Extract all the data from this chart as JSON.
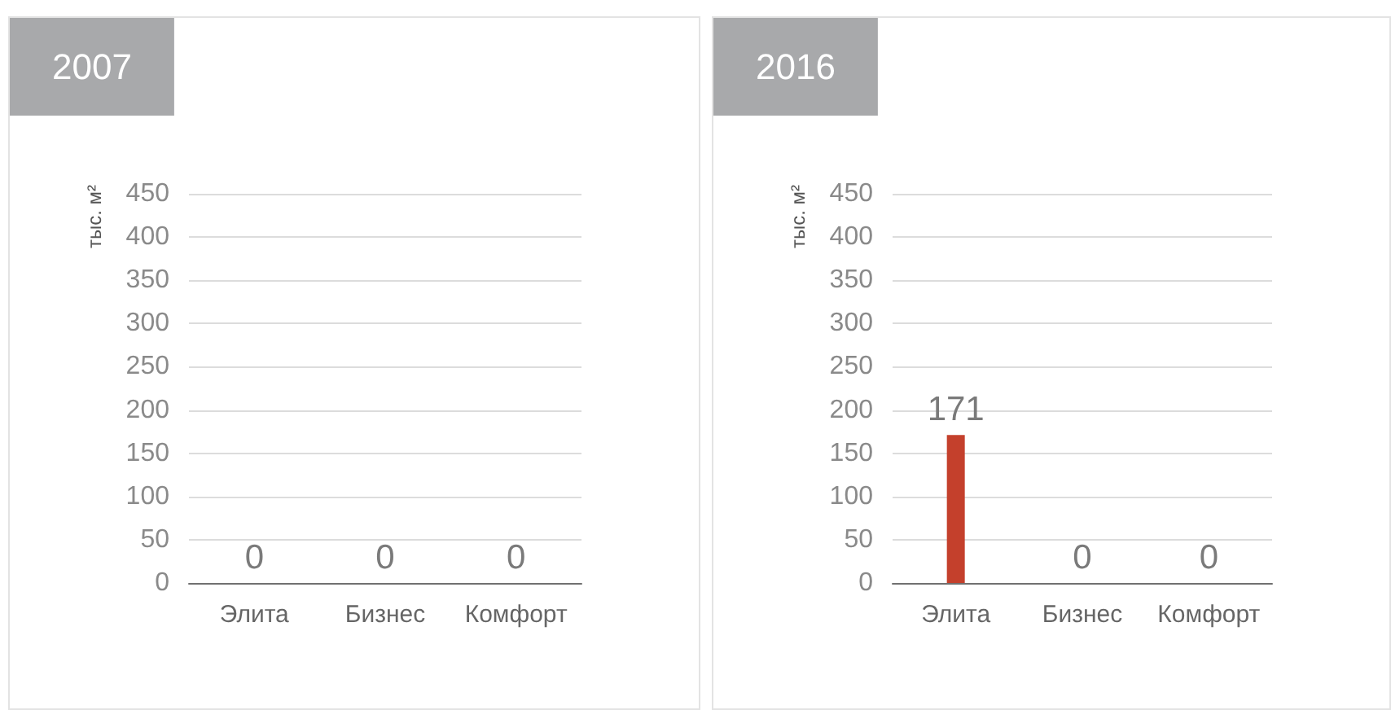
{
  "chart_data": [
    {
      "type": "bar",
      "title": "2007",
      "ylabel": "тыс. м²",
      "categories": [
        "Элита",
        "Бизнес",
        "Комфорт"
      ],
      "values": [
        0,
        0,
        0
      ],
      "ylim": [
        0,
        450
      ],
      "yticks": [
        0,
        50,
        100,
        150,
        200,
        250,
        300,
        350,
        400,
        450
      ],
      "grid": "y",
      "data_labels": true
    },
    {
      "type": "bar",
      "title": "2016",
      "ylabel": "тыс. м²",
      "categories": [
        "Элита",
        "Бизнес",
        "Комфорт"
      ],
      "values": [
        171,
        0,
        0
      ],
      "color": "#c4402c",
      "ylim": [
        0,
        450
      ],
      "yticks": [
        0,
        50,
        100,
        150,
        200,
        250,
        300,
        350,
        400,
        450
      ],
      "grid": "y",
      "data_labels": true
    }
  ]
}
